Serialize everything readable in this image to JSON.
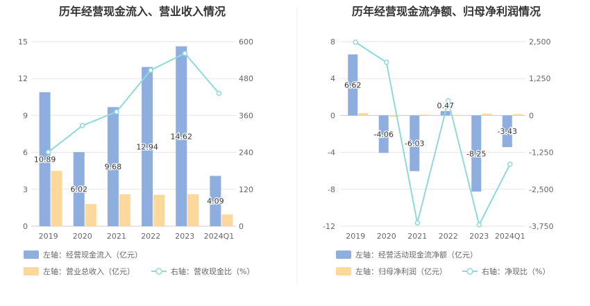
{
  "chart_data": [
    {
      "type": "bar",
      "title": "历年经营现金流入、营业收入情况",
      "categories": [
        "2019",
        "2020",
        "2021",
        "2022",
        "2023",
        "2024Q1"
      ],
      "y_left": {
        "range": [
          0,
          15
        ],
        "ticks": [
          "0",
          "3",
          "6",
          "9",
          "12",
          "15"
        ]
      },
      "y_right": {
        "range": [
          0,
          600
        ],
        "ticks": [
          "0",
          "120",
          "240",
          "360",
          "480",
          "600"
        ]
      },
      "series": [
        {
          "name": "左轴：经营现金流入（亿元）",
          "axis": "left",
          "kind": "bar",
          "color": "#8eaedf",
          "values": [
            10.89,
            6.02,
            9.68,
            12.94,
            14.62,
            4.09
          ],
          "labels": [
            "10.89",
            "6.02",
            "9.68",
            "12.94",
            "14.62",
            "4.09"
          ]
        },
        {
          "name": "左轴：营业总收入（亿元）",
          "axis": "left",
          "kind": "bar",
          "color": "#fcd89d",
          "values": [
            4.5,
            1.8,
            2.6,
            2.55,
            2.6,
            0.95
          ]
        },
        {
          "name": "右轴：营收现金比（%）",
          "axis": "right",
          "kind": "line",
          "color": "#8fd8dc",
          "values": [
            241,
            327,
            372,
            507,
            562,
            432
          ]
        }
      ],
      "legend_position": "bottom-left"
    },
    {
      "type": "bar",
      "title": "历年经营现金流净额、归母净利润情况",
      "categories": [
        "2019",
        "2020",
        "2021",
        "2022",
        "2023",
        "2024Q1"
      ],
      "y_left": {
        "range": [
          -12,
          8
        ],
        "ticks": [
          "-12",
          "-8",
          "-4",
          "0",
          "4",
          "8"
        ]
      },
      "y_right": {
        "range": [
          -3750,
          2500
        ],
        "ticks": [
          "-3,750",
          "-2,500",
          "-1,250",
          "0",
          "1,250",
          "2,500"
        ]
      },
      "series": [
        {
          "name": "左轴：经营活动现金流净额（亿元）",
          "axis": "left",
          "kind": "bar",
          "color": "#8eaedf",
          "values": [
            6.62,
            -4.06,
            -6.03,
            0.47,
            -8.25,
            -3.43
          ],
          "labels": [
            "6.62",
            "-4.06",
            "-6.03",
            "0.47",
            "-8.25",
            "-3.43"
          ]
        },
        {
          "name": "左轴：归母净利润（亿元）",
          "axis": "left",
          "kind": "bar",
          "color": "#fcd89d",
          "values": [
            0.25,
            -0.15,
            0.1,
            0.06,
            0.2,
            0.15
          ]
        },
        {
          "name": "右轴：净现比（%）",
          "axis": "right",
          "kind": "line",
          "color": "#8fd8dc",
          "values": [
            2480,
            1800,
            -3640,
            500,
            -3700,
            -1650
          ]
        }
      ],
      "legend_position": "bottom-left"
    }
  ]
}
